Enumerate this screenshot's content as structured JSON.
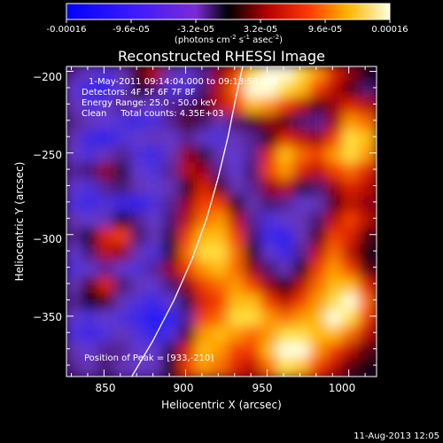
{
  "chart_data": {
    "type": "heatmap",
    "title": "Reconstructed RHESSI Image",
    "xlabel": "Heliocentric X (arcsec)",
    "ylabel": "Heliocentric Y (arcsec)",
    "xlim": [
      827,
      1017
    ],
    "ylim": [
      -387,
      -197
    ],
    "x_ticks": [
      850,
      900,
      950,
      1000
    ],
    "y_ticks": [
      -200,
      -250,
      -300,
      -350
    ],
    "colorbar": {
      "ticks": [
        "-0.00016",
        "-9.6e-05",
        "-3.2e-05",
        "3.2e-05",
        "9.6e-05",
        "0.00016"
      ],
      "range": [
        -0.00016,
        0.00016
      ],
      "units_prefix": "(photons cm",
      "units_exp1": "-2",
      "units_mid": " s",
      "units_exp2": "-1",
      "units_end": " asec",
      "units_exp3": "-2",
      "units_close": ")"
    },
    "annotations": [
      "1-May-2011 09:14:04.000 to 09:18:58.000",
      "Detectors: 4F 5F 6F 7F 8F",
      "Energy Range: 25.0 - 50.0 keV",
      "Clean     Total counts: 4.35E+03"
    ],
    "peak_label": "Position of Peak = [933,-210]",
    "peak": [
      933,
      -210
    ],
    "limb_curve": [
      [
        867,
        -387
      ],
      [
        880,
        -365
      ],
      [
        893,
        -340
      ],
      [
        904,
        -315
      ],
      [
        913,
        -290
      ],
      [
        920,
        -265
      ],
      [
        926,
        -240
      ],
      [
        931,
        -215
      ],
      [
        935,
        -197
      ]
    ],
    "map": {
      "nx": 19,
      "ny": 19,
      "values": [
        [
          -0.3,
          -0.5,
          -0.6,
          -0.4,
          0.1,
          0.3,
          -0.4,
          -0.5,
          -0.3,
          0.2,
          0.5,
          0.9,
          1.0,
          1.0,
          0.9,
          0.7,
          0.4,
          0.2,
          0.0
        ],
        [
          -0.5,
          -0.7,
          -0.8,
          -0.5,
          0.0,
          -0.2,
          -0.6,
          -0.6,
          -0.2,
          0.3,
          0.6,
          1.0,
          1.0,
          0.9,
          0.8,
          0.5,
          0.3,
          0.1,
          -0.2
        ],
        [
          -0.4,
          -0.6,
          -0.5,
          -0.3,
          -0.4,
          -0.5,
          -0.3,
          -0.2,
          0.1,
          0.3,
          0.5,
          0.8,
          0.7,
          0.5,
          0.3,
          0.1,
          0.2,
          0.4,
          0.3
        ],
        [
          -0.3,
          -0.4,
          -0.5,
          -0.6,
          -0.7,
          -0.6,
          -0.3,
          0.1,
          -0.2,
          -0.4,
          -0.2,
          0.1,
          0.2,
          0.1,
          -0.2,
          -0.3,
          0.2,
          0.7,
          0.6
        ],
        [
          -0.4,
          -0.7,
          -0.8,
          -0.6,
          -0.5,
          -0.4,
          -0.5,
          -0.3,
          -0.5,
          -0.6,
          -0.4,
          -0.3,
          0.0,
          0.4,
          0.3,
          0.2,
          0.5,
          0.9,
          0.8
        ],
        [
          -0.5,
          -0.6,
          -0.4,
          -0.3,
          -0.6,
          -0.7,
          -0.4,
          0.2,
          -0.1,
          -0.4,
          -0.5,
          -0.3,
          0.4,
          0.8,
          0.6,
          0.5,
          0.7,
          0.9,
          0.7
        ],
        [
          -0.3,
          -0.2,
          0.2,
          -0.1,
          -0.5,
          -0.6,
          -0.3,
          0.3,
          0.2,
          -0.3,
          -0.5,
          -0.2,
          0.5,
          0.7,
          0.4,
          0.3,
          0.5,
          0.6,
          0.4
        ],
        [
          -0.5,
          -0.6,
          -0.3,
          -0.2,
          -0.4,
          -0.5,
          -0.4,
          0.0,
          0.4,
          0.1,
          -0.4,
          -0.3,
          0.2,
          0.3,
          -0.1,
          -0.2,
          0.2,
          0.4,
          0.3
        ],
        [
          -0.6,
          -0.7,
          -0.6,
          -0.7,
          -0.8,
          -0.6,
          -0.3,
          0.2,
          0.5,
          0.5,
          0.0,
          -0.4,
          -0.2,
          -0.3,
          -0.5,
          -0.4,
          0.1,
          0.3,
          0.2
        ],
        [
          -0.4,
          -0.5,
          -0.4,
          0.0,
          -0.3,
          -0.5,
          -0.2,
          0.3,
          0.6,
          0.7,
          0.3,
          -0.3,
          -0.6,
          -0.5,
          -0.4,
          -0.2,
          0.3,
          0.5,
          0.3
        ],
        [
          -0.3,
          0.0,
          0.4,
          0.5,
          -0.2,
          -0.4,
          -0.1,
          0.5,
          0.8,
          0.8,
          0.5,
          -0.2,
          -0.7,
          -0.8,
          -0.4,
          0.1,
          0.5,
          0.4,
          0.1
        ],
        [
          -0.5,
          -0.2,
          0.3,
          0.2,
          -0.4,
          -0.6,
          0.0,
          0.6,
          0.9,
          0.9,
          0.6,
          0.0,
          -0.5,
          -0.7,
          -0.3,
          0.3,
          0.6,
          0.3,
          0.0
        ],
        [
          -0.6,
          -0.5,
          -0.3,
          -0.5,
          -0.6,
          -0.3,
          0.2,
          0.5,
          0.7,
          0.8,
          0.6,
          0.2,
          -0.2,
          -0.4,
          0.0,
          0.5,
          0.7,
          0.5,
          0.1
        ],
        [
          -0.4,
          0.1,
          0.4,
          -0.2,
          -0.4,
          -0.5,
          -0.2,
          0.2,
          0.5,
          0.6,
          0.7,
          0.5,
          0.2,
          0.0,
          0.3,
          0.6,
          0.8,
          0.8,
          0.4
        ],
        [
          -0.3,
          0.0,
          0.1,
          -0.4,
          -0.6,
          -0.7,
          -0.5,
          -0.1,
          0.4,
          0.5,
          0.8,
          0.8,
          0.5,
          0.3,
          0.5,
          0.7,
          0.9,
          1.0,
          0.6
        ],
        [
          -0.5,
          -0.6,
          -0.5,
          -0.6,
          -0.7,
          -0.9,
          -0.8,
          -0.3,
          0.5,
          0.6,
          0.9,
          0.9,
          0.7,
          0.6,
          0.7,
          0.8,
          1.0,
          0.9,
          0.5
        ],
        [
          -0.6,
          -0.7,
          -0.6,
          -0.4,
          -0.6,
          -0.8,
          -0.6,
          0.1,
          0.7,
          0.8,
          0.7,
          0.6,
          0.7,
          0.9,
          0.9,
          0.8,
          0.8,
          0.6,
          0.3
        ],
        [
          -0.4,
          -0.5,
          -0.3,
          -0.3,
          -0.5,
          -0.5,
          -0.1,
          0.4,
          0.8,
          0.7,
          0.5,
          0.5,
          0.8,
          1.0,
          1.0,
          0.7,
          0.5,
          0.3,
          0.1
        ],
        [
          -0.3,
          -0.4,
          -0.2,
          -0.4,
          -0.5,
          -0.4,
          0.0,
          0.5,
          0.7,
          0.6,
          0.4,
          0.3,
          0.6,
          0.9,
          0.8,
          0.5,
          0.3,
          0.1,
          0.0
        ]
      ]
    }
  },
  "footer": {
    "date": "11-Aug-2013 12:05"
  }
}
